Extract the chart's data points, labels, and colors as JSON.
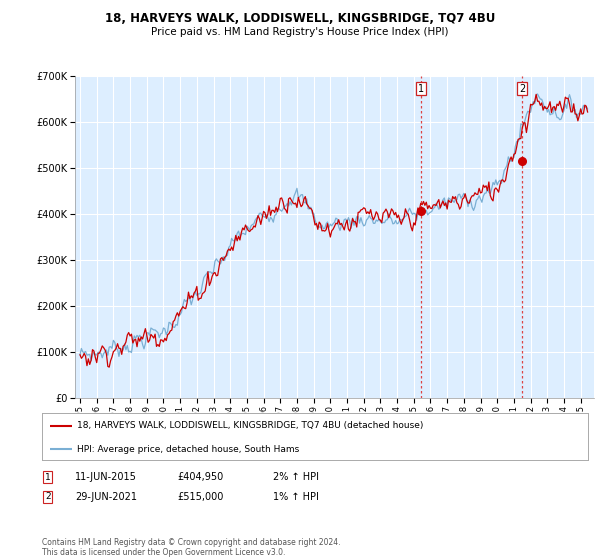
{
  "title": "18, HARVEYS WALK, LODDISWELL, KINGSBRIDGE, TQ7 4BU",
  "subtitle": "Price paid vs. HM Land Registry's House Price Index (HPI)",
  "ylim": [
    0,
    700000
  ],
  "yticks": [
    0,
    100000,
    200000,
    300000,
    400000,
    500000,
    600000,
    700000
  ],
  "ytick_labels": [
    "£0",
    "£100K",
    "£200K",
    "£300K",
    "£400K",
    "£500K",
    "£600K",
    "£700K"
  ],
  "sale1_year": 2015.44,
  "sale1_price": 404950,
  "sale1_date": "11-JUN-2015",
  "sale1_hpi_text": "2% ↑ HPI",
  "sale2_year": 2021.49,
  "sale2_price": 515000,
  "sale2_date": "29-JUN-2021",
  "sale2_hpi_text": "1% ↑ HPI",
  "legend_line1": "18, HARVEYS WALK, LODDISWELL, KINGSBRIDGE, TQ7 4BU (detached house)",
  "legend_line2": "HPI: Average price, detached house, South Hams",
  "footer": "Contains HM Land Registry data © Crown copyright and database right 2024.\nThis data is licensed under the Open Government Licence v3.0.",
  "hpi_color": "#7aafd4",
  "price_color": "#cc0000",
  "vline_color": "#dd4444",
  "plot_bg_color": "#ddeeff",
  "background_color": "#ffffff",
  "grid_color": "#ffffff",
  "xlim_left": 1994.7,
  "xlim_right": 2025.8
}
